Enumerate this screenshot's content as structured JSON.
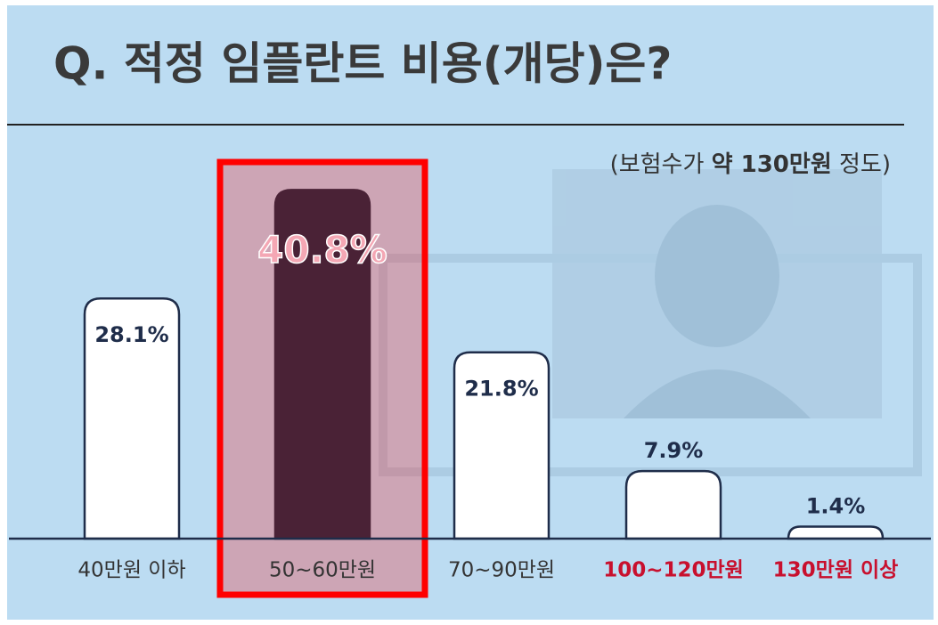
{
  "chart_data": {
    "type": "bar",
    "title": "Q. 적정 임플란트 비용(개당)은?",
    "subtitle": [
      "(보험수가 ",
      "약 130만원",
      " 정도)"
    ],
    "categories": [
      "40만원 이하",
      "50~60만원",
      "70~90만원",
      "100~120만원",
      "130만원 이상"
    ],
    "values": [
      28.1,
      40.8,
      21.8,
      7.9,
      1.4
    ],
    "value_labels": [
      "28.1%",
      "40.8%",
      "21.8%",
      "7.9%",
      "1.4%"
    ],
    "colors": [
      "#ffffff",
      "#4a2236",
      "#ffffff",
      "#ffffff",
      "#ffffff"
    ],
    "category_colors": [
      "#333333",
      "#333333",
      "#333333",
      "#c8102e",
      "#c8102e"
    ],
    "highlight_color": "#ff0000"
  }
}
